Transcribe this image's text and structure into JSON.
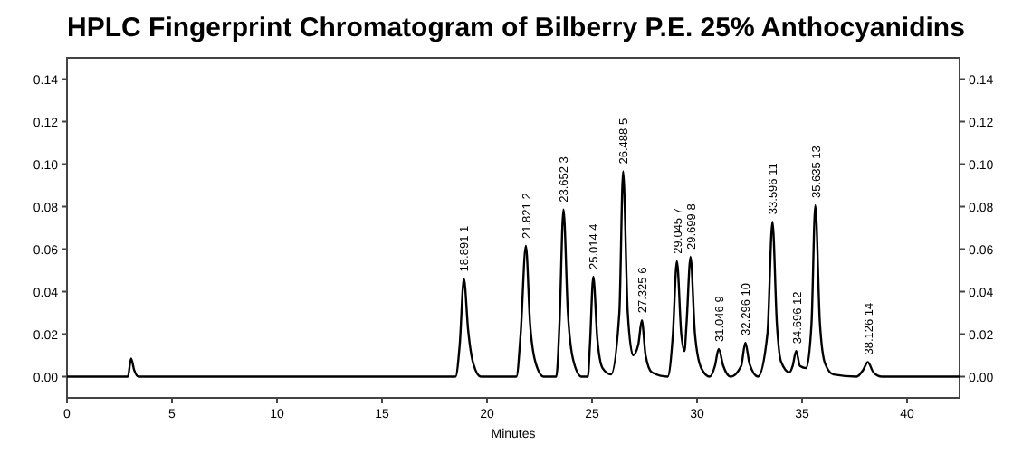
{
  "chart_data": {
    "type": "line",
    "title": "HPLC Fingerprint Chromatogram of Bilberry P.E. 25% Anthocyanidins",
    "xlabel": "Minutes",
    "x": [
      0,
      2.9,
      3.05,
      3.2,
      3.4,
      18.5,
      18.7,
      18.9,
      19.1,
      19.35,
      19.7,
      21.4,
      21.6,
      21.85,
      22.05,
      22.3,
      22.7,
      23.3,
      23.45,
      23.64,
      23.85,
      24.1,
      24.5,
      24.8,
      24.9,
      25.06,
      25.25,
      25.5,
      25.9,
      26.3,
      26.48,
      26.7,
      26.95,
      27.2,
      27.37,
      27.55,
      27.85,
      28.6,
      28.85,
      29.04,
      29.25,
      29.4,
      29.5,
      29.69,
      29.9,
      30.2,
      30.6,
      30.85,
      31.03,
      31.25,
      31.6,
      32.1,
      32.3,
      32.5,
      32.9,
      33.35,
      33.59,
      33.8,
      34.0,
      34.4,
      34.55,
      34.72,
      34.9,
      35.2,
      35.45,
      35.63,
      35.85,
      36.1,
      36.5,
      37.6,
      37.9,
      38.13,
      38.4,
      38.8,
      42.5
    ],
    "series": [
      {
        "color": "#000000",
        "values": [
          0,
          0,
          0.0085,
          0.003,
          0,
          0,
          0.015,
          0.046,
          0.022,
          0.006,
          0,
          0,
          0.02,
          0.0615,
          0.025,
          0.007,
          0,
          0,
          0.025,
          0.0786,
          0.03,
          0.008,
          0,
          0,
          0.015,
          0.047,
          0.018,
          0.004,
          0.001,
          0.03,
          0.0966,
          0.03,
          0.01,
          0.015,
          0.0265,
          0.01,
          0.002,
          0,
          0.02,
          0.0544,
          0.02,
          0.012,
          0.025,
          0.0564,
          0.02,
          0.004,
          0,
          0.005,
          0.013,
          0.005,
          0,
          0.005,
          0.016,
          0.006,
          0,
          0.02,
          0.0729,
          0.025,
          0.007,
          0.002,
          0.005,
          0.012,
          0.005,
          0.004,
          0.025,
          0.0806,
          0.025,
          0.006,
          0.001,
          0,
          0.003,
          0.0068,
          0.002,
          0,
          0
        ]
      }
    ],
    "xlim": [
      0,
      42.5
    ],
    "xticks": [
      0,
      5,
      10,
      15,
      20,
      25,
      30,
      35,
      40
    ],
    "ylim": [
      -0.01,
      0.15
    ],
    "yticks": [
      {
        "value": 0,
        "label": "0.00"
      },
      {
        "value": 0.02,
        "label": "0.02"
      },
      {
        "value": 0.04,
        "label": "0.04"
      },
      {
        "value": 0.06,
        "label": "0.06"
      },
      {
        "value": 0.08,
        "label": "0.08"
      },
      {
        "value": 0.1,
        "label": "0.10"
      },
      {
        "value": 0.12,
        "label": "0.12"
      },
      {
        "value": 0.14,
        "label": "0.14"
      }
    ],
    "y2lim": [
      -0.01,
      0.15
    ],
    "y2ticks": [
      {
        "value": 0,
        "label": "0.00"
      },
      {
        "value": 0.02,
        "label": "0.02"
      },
      {
        "value": 0.04,
        "label": "0.04"
      },
      {
        "value": 0.06,
        "label": "0.06"
      },
      {
        "value": 0.08,
        "label": "0.08"
      },
      {
        "value": 0.1,
        "label": "0.10"
      },
      {
        "value": 0.12,
        "label": "0.12"
      },
      {
        "value": 0.14,
        "label": "0.14"
      }
    ],
    "annotations": [
      {
        "text": "18.891 1",
        "x": 18.9,
        "y": 0.046
      },
      {
        "text": "21.821 2",
        "x": 21.85,
        "y": 0.0615
      },
      {
        "text": "23.652 3",
        "x": 23.64,
        "y": 0.0786
      },
      {
        "text": "25.014 4",
        "x": 25.06,
        "y": 0.047
      },
      {
        "text": "26.488 5",
        "x": 26.48,
        "y": 0.0966
      },
      {
        "text": "27.325 6",
        "x": 27.37,
        "y": 0.0265
      },
      {
        "text": "29.045 7",
        "x": 29.04,
        "y": 0.0544
      },
      {
        "text": "29.699 8",
        "x": 29.69,
        "y": 0.0564
      },
      {
        "text": "31.046 9",
        "x": 31.03,
        "y": 0.013
      },
      {
        "text": "32.296 10",
        "x": 32.3,
        "y": 0.016
      },
      {
        "text": "33.596 11",
        "x": 33.59,
        "y": 0.0729
      },
      {
        "text": "34.696 12",
        "x": 34.72,
        "y": 0.012
      },
      {
        "text": "35.635 13",
        "x": 35.63,
        "y": 0.0806
      },
      {
        "text": "38.126 14",
        "x": 38.13,
        "y": 0.0068
      }
    ],
    "grid": false,
    "line_style": "solid",
    "marker": "none"
  }
}
